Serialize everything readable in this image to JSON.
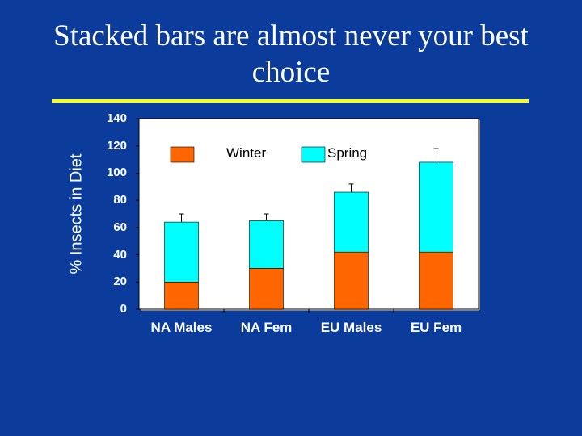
{
  "slide": {
    "title": "Stacked bars are almost never your best choice"
  },
  "colors": {
    "background": "#0b3c9c",
    "rule": "#ffff00",
    "winter": "#ff6600",
    "spring": "#00ffff"
  },
  "chart_data": {
    "type": "bar",
    "stacked": true,
    "ylabel": "% Insects in Diet",
    "xlabel": "",
    "ylim": [
      0,
      140
    ],
    "yticks": [
      0,
      20,
      40,
      60,
      80,
      100,
      120,
      140
    ],
    "categories": [
      "NA Males",
      "NA Fem",
      "EU Males",
      "EU Fem"
    ],
    "series": [
      {
        "name": "Winter",
        "color": "#ff6600",
        "values": [
          20,
          30,
          42,
          42
        ],
        "error": [
          1,
          2,
          3,
          3
        ]
      },
      {
        "name": "Spring",
        "color": "#00ffff",
        "values": [
          44,
          35,
          44,
          66
        ],
        "error": [
          6,
          5,
          6,
          10
        ]
      }
    ],
    "grid": false,
    "legend_position": "top-inside"
  }
}
